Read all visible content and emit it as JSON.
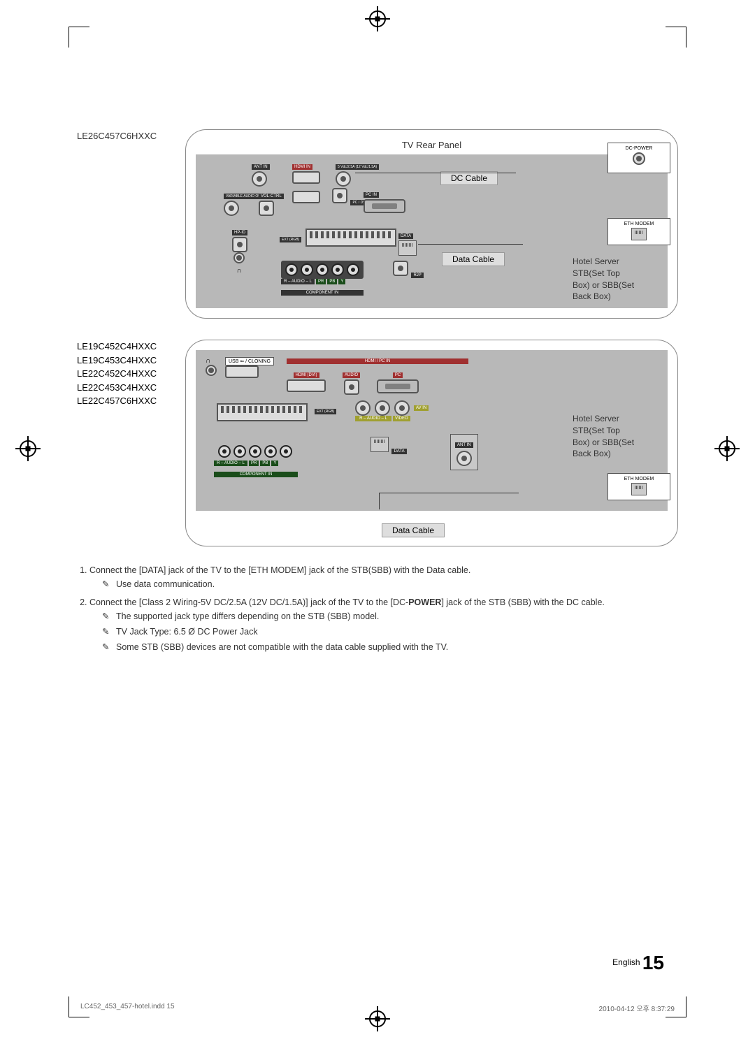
{
  "crop_marks": true,
  "diagram1": {
    "model": "LE26C457C6HXXC",
    "title": "TV Rear Panel",
    "labels": {
      "ant_in": "ANT IN",
      "hdmi_in": "HDMI IN",
      "dc_class": "5 Vdc/2.5A (12 Vdc/1.5A)",
      "variable": "VARIABLE AUDIO OUT",
      "vol_ctrl": "VOL-CTRL",
      "pc_in": "PC IN",
      "pc_dvi": "PC / DVI AUDIO IN",
      "hp_id": "HP-ID",
      "ext_rgb": "EXT (RGB)",
      "data": "DATA",
      "rjp": "RJP",
      "audio": "R – AUDIO – L",
      "component": "COMPONENT IN",
      "dc_power": "DC-POWER",
      "eth_modem": "ETH MODEM"
    },
    "dc_cable": "DC Cable",
    "data_cable": "Data Cable",
    "callout": "Hotel Server\nSTB(Set Top\nBox) or SBB(Set\nBack Box)"
  },
  "diagram2": {
    "models": [
      "LE19C452C4HXXC",
      "LE19C453C4HXXC",
      "LE22C452C4HXXC",
      "LE22C453C4HXXC",
      "LE22C457C6HXXC"
    ],
    "labels": {
      "usb": "USB ⇐ / CLONING",
      "hdmi_pc": "HDMI / PC IN",
      "hdmi_dvi": "HDMI (DVI)",
      "audio": "AUDIO",
      "pc": "PC",
      "ext_rgb": "EXT (RGB)",
      "av_in": "AV IN",
      "audio_rl": "R – AUDIO – L",
      "video": "VIDEO",
      "ant_in": "ANT IN",
      "data": "DATA",
      "component": "COMPONENT IN",
      "eth_modem": "ETH MODEM"
    },
    "data_cable": "Data Cable",
    "callout": "Hotel Server\nSTB(Set Top\nBox) or SBB(Set\nBack Box)"
  },
  "instructions": {
    "item1": "Connect the [DATA] jack of the TV to the [ETH MODEM] jack of the STB(SBB) with the Data cable.",
    "note1": "Use data communication.",
    "item2_pre": "Connect the [Class 2 Wiring-5V DC/2.5A (12V DC/1.5A)] jack of the TV to the [DC-",
    "item2_bold": "POWER",
    "item2_post": "] jack of  the STB (SBB) with the DC cable.",
    "note2a": "The supported jack type differs depending on the STB (SBB) model.",
    "note2b": "TV Jack Type: 6.5 Ø DC Power Jack",
    "note2c": "Some STB (SBB) devices are not compatible with the data cable supplied with the TV."
  },
  "footer": {
    "lang": "English",
    "page": "15",
    "print_file": "LC452_453_457-hotel.indd   15",
    "print_time": "2010-04-12   오후 8:37:29"
  }
}
